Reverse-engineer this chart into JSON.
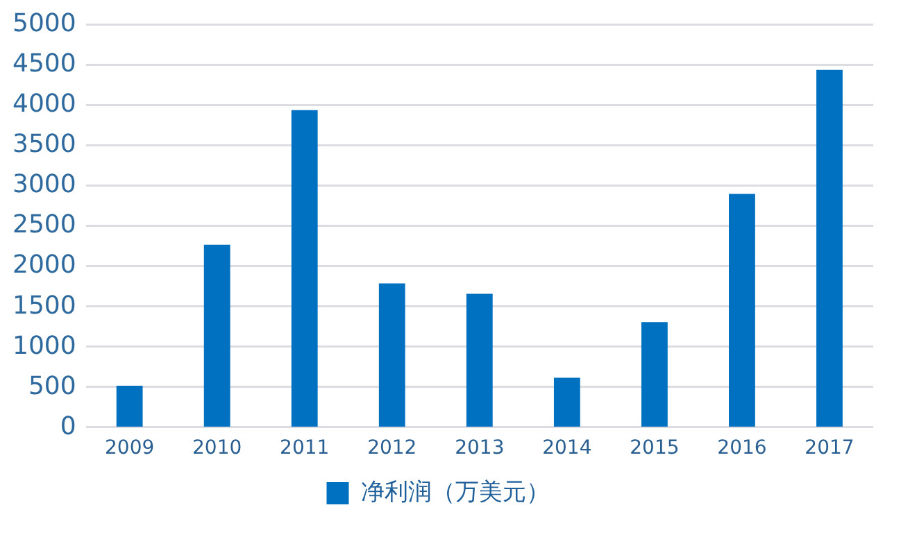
{
  "chart_data": {
    "type": "bar",
    "categories": [
      "2009",
      "2010",
      "2011",
      "2012",
      "2013",
      "2014",
      "2015",
      "2016",
      "2017"
    ],
    "series": [
      {
        "name": "净利润（万美元）",
        "color": "#0070c0",
        "values": [
          520,
          2270,
          3940,
          1790,
          1660,
          620,
          1310,
          2900,
          4440
        ]
      }
    ],
    "ylim": [
      0,
      5000
    ],
    "yticks": [
      0,
      500,
      1000,
      1500,
      2000,
      2500,
      3000,
      3500,
      4000,
      4500,
      5000
    ],
    "grid": "y",
    "legend": "bottom"
  }
}
